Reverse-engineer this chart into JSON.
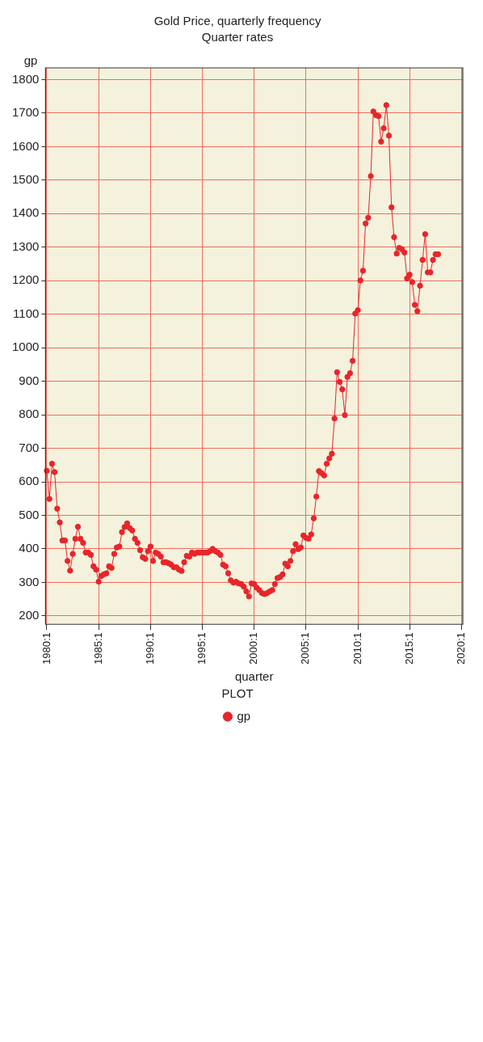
{
  "chart_data": {
    "type": "line",
    "title": "Gold Price, quarterly frequency",
    "subtitle": "Quarter rates",
    "xlabel": "quarter",
    "ylabel": "gp",
    "legend_title": "PLOT",
    "categories": [
      "1980:1",
      null,
      null,
      null,
      null,
      null,
      null,
      null,
      null,
      null,
      null,
      null,
      null,
      null,
      null,
      null,
      null,
      null,
      null,
      null,
      "1985:1",
      null,
      null,
      null,
      null,
      null,
      null,
      null,
      null,
      null,
      null,
      null,
      null,
      null,
      null,
      null,
      null,
      null,
      null,
      null,
      "1990:1",
      null,
      null,
      null,
      null,
      null,
      null,
      null,
      null,
      null,
      null,
      null,
      null,
      null,
      null,
      null,
      null,
      null,
      null,
      null,
      "1995:1",
      null,
      null,
      null,
      null,
      null,
      null,
      null,
      null,
      null,
      null,
      null,
      null,
      null,
      null,
      null,
      null,
      null,
      null,
      null,
      "2000:1",
      null,
      null,
      null,
      null,
      null,
      null,
      null,
      null,
      null,
      null,
      null,
      null,
      null,
      null,
      null,
      null,
      null,
      null,
      null,
      "2005:1",
      null,
      null,
      null,
      null,
      null,
      null,
      null,
      null,
      null,
      null,
      null,
      null,
      null,
      null,
      null,
      null,
      null,
      null,
      null,
      "2010:1",
      null,
      null,
      null,
      null,
      null,
      null,
      null,
      null,
      null,
      null,
      null,
      null,
      null,
      null,
      null,
      null,
      null,
      null,
      null,
      "2015:1",
      null,
      null,
      null,
      null,
      null,
      null,
      null,
      null,
      null,
      null,
      null,
      null,
      null,
      null,
      null,
      null,
      null,
      null,
      null,
      "2020:1"
    ],
    "series": [
      {
        "name": "gp",
        "color": "#e8252b",
        "values": [
          633,
          549,
          654,
          629,
          520,
          479,
          425,
          425,
          364,
          335,
          385,
          430,
          466,
          430,
          418,
          389,
          389,
          382,
          348,
          338,
          302,
          319,
          324,
          327,
          348,
          343,
          385,
          404,
          407,
          450,
          465,
          476,
          462,
          455,
          430,
          418,
          396,
          375,
          370,
          393,
          407,
          364,
          389,
          385,
          377,
          360,
          360,
          357,
          353,
          345,
          345,
          338,
          334,
          360,
          379,
          377,
          389,
          385,
          389,
          389,
          389,
          389,
          389,
          393,
          400,
          393,
          389,
          382,
          353,
          348,
          327,
          306,
          299,
          302,
          297,
          295,
          287,
          273,
          258,
          297,
          295,
          284,
          277,
          268,
          265,
          268,
          273,
          277,
          295,
          313,
          316,
          324,
          356,
          348,
          364,
          393,
          414,
          399,
          404,
          440,
          433,
          430,
          443,
          491,
          556,
          632,
          626,
          619,
          654,
          670,
          684,
          789,
          927,
          898,
          876,
          799,
          913,
          924,
          961,
          1102,
          1112,
          1201,
          1230,
          1371,
          1388,
          1512,
          1705,
          1694,
          1691,
          1615,
          1655,
          1724,
          1633,
          1419,
          1330,
          1281,
          1298,
          1294,
          1284,
          1207,
          1218,
          1196,
          1128,
          1109,
          1185,
          1262,
          1339,
          1225,
          1225,
          1262,
          1279,
          1279,
          null,
          null,
          null,
          null,
          null,
          null,
          null,
          null,
          null
        ]
      }
    ],
    "ylim": [
      175,
      1835
    ],
    "yticks": [
      200,
      300,
      400,
      500,
      600,
      700,
      800,
      900,
      1000,
      1100,
      1200,
      1300,
      1400,
      1500,
      1600,
      1700,
      1800
    ],
    "grid": true,
    "legend": "bottom",
    "marker": "circle"
  }
}
